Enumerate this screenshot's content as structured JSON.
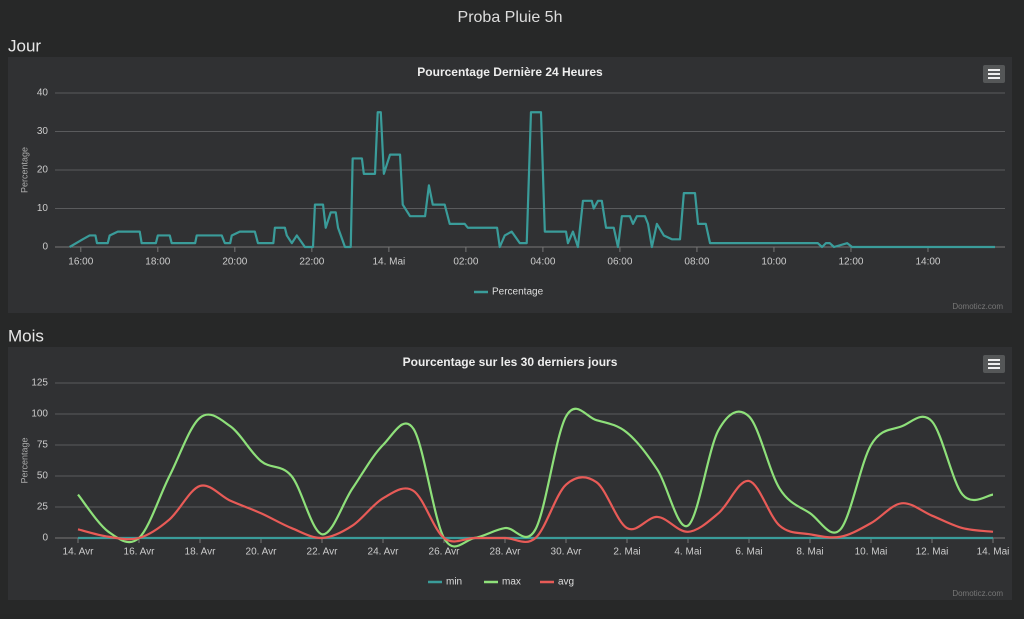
{
  "page": {
    "title": "Proba Pluie 5h",
    "sections": [
      "Jour",
      "Mois"
    ]
  },
  "chart_data": [
    {
      "type": "line",
      "title": "Pourcentage Dernière 24 Heures",
      "y_label": "Percentage",
      "credits": "Domoticz.com",
      "x": [
        15.71,
        16.05,
        16.23,
        16.38,
        16.42,
        16.7,
        16.75,
        16.96,
        17.53,
        17.58,
        17.95,
        18.0,
        18.31,
        18.36,
        18.97,
        19.01,
        19.66,
        19.74,
        19.88,
        19.92,
        20.13,
        20.52,
        20.6,
        21.0,
        21.04,
        21.3,
        21.35,
        21.48,
        21.61,
        21.82,
        22.03,
        22.08,
        22.29,
        22.36,
        22.49,
        22.62,
        22.68,
        22.86,
        23.01,
        23.06,
        23.3,
        23.35,
        23.64,
        23.71,
        23.79,
        23.87,
        24.03,
        24.29,
        24.36,
        24.55,
        24.94,
        25.04,
        25.14,
        25.45,
        25.58,
        25.97,
        26.05,
        26.81,
        26.88,
        27.01,
        27.19,
        27.4,
        27.58,
        27.69,
        27.95,
        28.05,
        28.6,
        28.65,
        28.78,
        28.91,
        29.04,
        29.27,
        29.32,
        29.43,
        29.53,
        29.64,
        29.84,
        29.95,
        30.05,
        30.26,
        30.34,
        30.44,
        30.65,
        30.73,
        30.83,
        30.96,
        31.14,
        31.35,
        31.56,
        31.66,
        31.95,
        32.03,
        32.23,
        32.34,
        35.14,
        35.25,
        35.35,
        35.45,
        35.56,
        35.9,
        36.03,
        39.74
      ],
      "series": [
        {
          "name": "Percentage",
          "color": "#3a9c9a",
          "values": [
            0,
            2,
            3,
            3,
            1,
            1,
            3,
            4,
            4,
            1,
            1,
            3,
            3,
            1,
            1,
            3,
            3,
            1,
            1,
            3,
            4,
            4,
            1,
            1,
            5,
            5,
            3,
            1,
            3,
            0,
            0,
            11,
            11,
            5,
            9,
            9,
            5,
            0,
            0,
            23,
            23,
            19,
            19,
            35,
            35,
            19,
            24,
            24,
            11,
            8,
            8,
            16,
            11,
            11,
            6,
            6,
            5,
            5,
            0,
            3,
            4,
            1,
            1,
            35,
            35,
            4,
            4,
            1,
            4,
            0,
            12,
            12,
            10,
            12,
            12,
            5,
            5,
            0,
            8,
            8,
            6,
            8,
            8,
            6,
            0,
            6,
            3,
            2,
            2,
            14,
            14,
            6,
            6,
            1,
            1,
            0,
            1,
            1,
            0,
            1,
            0,
            0
          ]
        }
      ],
      "xlim": [
        15.33,
        40
      ],
      "xticks": [
        {
          "value": 16,
          "label": "16:00"
        },
        {
          "value": 18,
          "label": "18:00"
        },
        {
          "value": 20,
          "label": "20:00"
        },
        {
          "value": 22,
          "label": "22:00"
        },
        {
          "value": 24,
          "label": "14. Mai"
        },
        {
          "value": 26,
          "label": "02:00"
        },
        {
          "value": 28,
          "label": "04:00"
        },
        {
          "value": 30,
          "label": "06:00"
        },
        {
          "value": 32,
          "label": "08:00"
        },
        {
          "value": 34,
          "label": "10:00"
        },
        {
          "value": 36,
          "label": "12:00"
        },
        {
          "value": 38,
          "label": "14:00"
        }
      ],
      "ylim": [
        0,
        40
      ],
      "yticks": [
        0,
        10,
        20,
        30,
        40
      ],
      "grid": true,
      "smooth": false
    },
    {
      "type": "line",
      "title": "Pourcentage sur les 30 derniers jours",
      "y_label": "Percentage",
      "credits": "Domoticz.com",
      "categories": [
        "14. Avr",
        null,
        "16. Avr",
        null,
        "18. Avr",
        null,
        "20. Avr",
        null,
        "22. Avr",
        null,
        "24. Avr",
        null,
        "26. Avr",
        null,
        "28. Avr",
        null,
        "30. Avr",
        null,
        "2. Mai",
        null,
        "4. Mai",
        null,
        "6. Mai",
        null,
        "8. Mai",
        null,
        "10. Mai",
        null,
        "12. Mai",
        null,
        "14. Mai"
      ],
      "series": [
        {
          "name": "min",
          "color": "#3a9c9a",
          "values": [
            0,
            0,
            0,
            0,
            0,
            0,
            0,
            0,
            0,
            0,
            0,
            0,
            0,
            0,
            0,
            0,
            0,
            0,
            0,
            0,
            0,
            0,
            0,
            0,
            0,
            0,
            0,
            0,
            0,
            0,
            0
          ]
        },
        {
          "name": "max",
          "color": "#8ee07a",
          "values": [
            35,
            5,
            0,
            50,
            97,
            90,
            62,
            50,
            3,
            40,
            75,
            88,
            0,
            0,
            8,
            7,
            98,
            95,
            85,
            55,
            10,
            87,
            98,
            40,
            20,
            7,
            75,
            90,
            94,
            35,
            35
          ]
        },
        {
          "name": "avg",
          "color": "#e85b57",
          "values": [
            7,
            1,
            0,
            15,
            42,
            30,
            20,
            8,
            0,
            10,
            32,
            38,
            0,
            0,
            0,
            0,
            43,
            45,
            8,
            17,
            5,
            20,
            46,
            10,
            3,
            1,
            12,
            28,
            18,
            8,
            5
          ]
        }
      ],
      "ylim": [
        0,
        125
      ],
      "yticks": [
        0,
        25,
        50,
        75,
        100,
        125
      ],
      "grid": true,
      "smooth": true
    }
  ]
}
